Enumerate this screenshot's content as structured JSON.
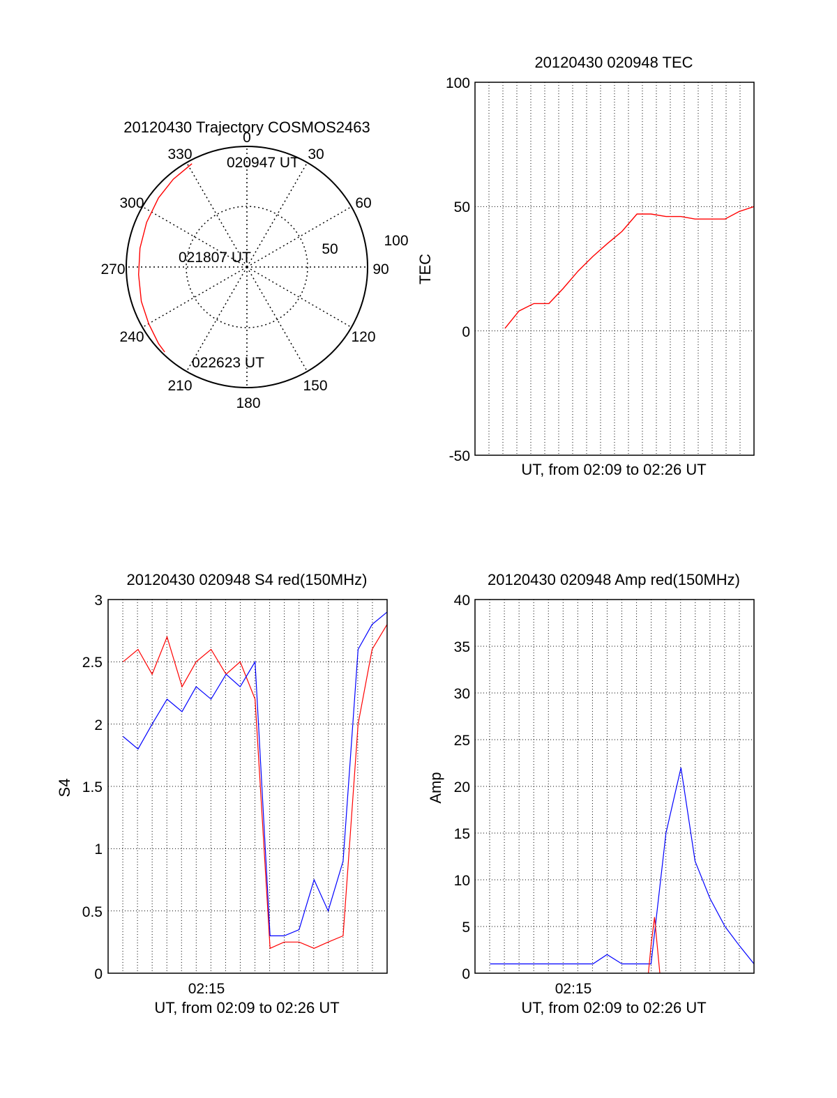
{
  "colors": {
    "red": "#ff0000",
    "blue": "#0000ff",
    "axis": "#000000",
    "grid": "#000000"
  },
  "chart_data": [
    {
      "type": "polar",
      "title": "20120430 Trajectory COSMOS2463",
      "angle_labels": [
        "0",
        "30",
        "60",
        "90",
        "120",
        "150",
        "180",
        "210",
        "240",
        "270",
        "300",
        "330"
      ],
      "angles_deg": [
        0,
        30,
        60,
        90,
        120,
        150,
        180,
        210,
        240,
        270,
        300,
        330
      ],
      "radius_labels": [
        "50",
        "100"
      ],
      "radius_values": [
        50,
        100
      ],
      "rmax": 100,
      "grid": true,
      "series": [
        {
          "color": "red",
          "points": [
            {
              "az": 332,
              "r": 97
            },
            {
              "az": 320,
              "r": 95
            },
            {
              "az": 308,
              "r": 93
            },
            {
              "az": 294,
              "r": 91
            },
            {
              "az": 280,
              "r": 90
            },
            {
              "az": 266,
              "r": 90
            },
            {
              "az": 252,
              "r": 92
            },
            {
              "az": 240,
              "r": 94
            },
            {
              "az": 229,
              "r": 97
            },
            {
              "az": 224,
              "r": 98
            }
          ]
        }
      ],
      "annotations": [
        "020947 UT",
        "021807 UT",
        "022623 UT"
      ]
    },
    {
      "type": "line",
      "title": "20120430 020948 TEC",
      "ylabel": "TEC",
      "xlabel": "UT, from 02:09 to 02:26 UT",
      "ylim": [
        -50,
        100
      ],
      "yticks": [
        "-50",
        "0",
        "50",
        "100"
      ],
      "xlim": [
        2.133,
        2.45
      ],
      "grid": true,
      "series": [
        {
          "color": "red",
          "x": [
            2.167,
            2.183,
            2.2,
            2.217,
            2.233,
            2.25,
            2.267,
            2.283,
            2.3,
            2.317,
            2.333,
            2.35,
            2.367,
            2.383,
            2.4,
            2.417,
            2.433,
            2.45
          ],
          "y": [
            1,
            8,
            11,
            11,
            17,
            24,
            30,
            35,
            40,
            47,
            47,
            46,
            46,
            45,
            45,
            45,
            48,
            50
          ]
        }
      ]
    },
    {
      "type": "line",
      "title": "20120430 020948 S4 red(150MHz)",
      "ylabel": "S4",
      "xlabel": "UT, from 02:09 to 02:26 UT",
      "ylim": [
        0,
        3
      ],
      "yticks": [
        "0",
        "0.5",
        "1",
        "1.5",
        "2",
        "2.5",
        "3"
      ],
      "xticks": [
        "02:15"
      ],
      "xlim": [
        2.133,
        2.45
      ],
      "grid": true,
      "series": [
        {
          "color": "blue",
          "x": [
            2.15,
            2.167,
            2.183,
            2.2,
            2.217,
            2.233,
            2.25,
            2.267,
            2.283,
            2.3,
            2.317,
            2.333,
            2.35,
            2.367,
            2.383,
            2.4,
            2.417,
            2.433,
            2.45
          ],
          "y": [
            1.9,
            1.8,
            2.0,
            2.2,
            2.1,
            2.3,
            2.2,
            2.4,
            2.3,
            2.5,
            0.3,
            0.3,
            0.35,
            0.75,
            0.5,
            0.9,
            2.6,
            2.8,
            2.9
          ]
        },
        {
          "color": "red",
          "x": [
            2.15,
            2.167,
            2.183,
            2.2,
            2.217,
            2.233,
            2.25,
            2.267,
            2.283,
            2.3,
            2.317,
            2.333,
            2.35,
            2.367,
            2.383,
            2.4,
            2.417,
            2.433,
            2.45
          ],
          "y": [
            2.5,
            2.6,
            2.4,
            2.7,
            2.3,
            2.5,
            2.6,
            2.4,
            2.5,
            2.2,
            0.2,
            0.25,
            0.25,
            0.2,
            0.25,
            0.3,
            2.0,
            2.6,
            2.8
          ]
        }
      ]
    },
    {
      "type": "line",
      "title": "20120430 020948 Amp red(150MHz)",
      "ylabel": "Amp",
      "xlabel": "UT, from 02:09 to 02:26 UT",
      "ylim": [
        0,
        40
      ],
      "yticks": [
        "0",
        "5",
        "10",
        "15",
        "20",
        "25",
        "30",
        "35",
        "40"
      ],
      "xticks": [
        "02:15"
      ],
      "xlim": [
        2.133,
        2.45
      ],
      "grid": true,
      "series": [
        {
          "color": "blue",
          "x": [
            2.15,
            2.167,
            2.183,
            2.2,
            2.217,
            2.233,
            2.25,
            2.267,
            2.283,
            2.3,
            2.317,
            2.333,
            2.35,
            2.367,
            2.383,
            2.4,
            2.417,
            2.433,
            2.45
          ],
          "y": [
            1,
            1,
            1,
            1,
            1,
            1,
            1,
            1,
            2,
            1,
            1,
            1,
            15,
            22,
            12,
            8,
            5,
            3,
            1
          ]
        },
        {
          "color": "red",
          "x": [
            2.33,
            2.333,
            2.337,
            2.34,
            2.343
          ],
          "y": [
            0,
            3,
            6,
            3,
            0
          ]
        }
      ]
    }
  ]
}
